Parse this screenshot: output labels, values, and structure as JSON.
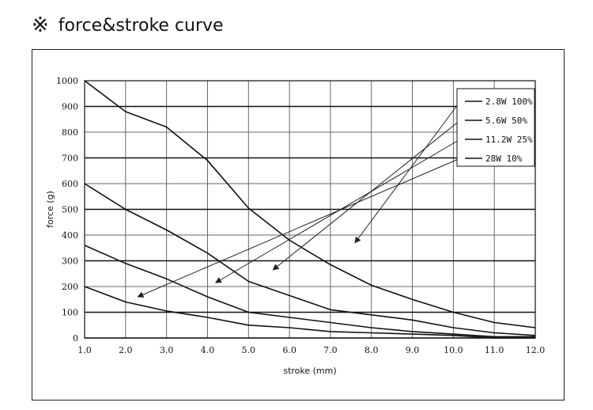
{
  "header": {
    "mark": "※",
    "title": "force&stroke curve"
  },
  "chart_data": {
    "type": "line",
    "title": "force&stroke curve",
    "xlabel": "stroke (mm)",
    "ylabel": "force (g)",
    "xlim": [
      1.0,
      12.0
    ],
    "ylim": [
      0,
      1000
    ],
    "xticks": [
      "1.0",
      "2.0",
      "3.0",
      "4.0",
      "5.0",
      "6.0",
      "7.0",
      "8.0",
      "9.0",
      "10.0",
      "11.0",
      "12.0"
    ],
    "yticks": [
      "0",
      "100",
      "200",
      "300",
      "400",
      "500",
      "600",
      "700",
      "800",
      "900",
      "1000"
    ],
    "grid": true,
    "legend_position": "top-right",
    "series": [
      {
        "name": "2.8W 100%",
        "x": [
          1.0,
          2.0,
          3.0,
          4.0,
          5.0,
          6.0,
          7.0,
          8.0,
          9.0,
          10.0,
          11.0,
          12.0
        ],
        "y": [
          1000,
          880,
          820,
          690,
          505,
          380,
          285,
          205,
          150,
          100,
          60,
          40
        ]
      },
      {
        "name": "5.6W 50%",
        "x": [
          1.0,
          2.0,
          3.0,
          4.0,
          5.0,
          6.0,
          7.0,
          8.0,
          9.0,
          10.0,
          11.0,
          12.0
        ],
        "y": [
          600,
          500,
          420,
          330,
          220,
          165,
          110,
          90,
          70,
          40,
          20,
          10
        ]
      },
      {
        "name": "11.2W 25%",
        "x": [
          1.0,
          2.0,
          3.0,
          4.0,
          5.0,
          6.0,
          7.0,
          8.0,
          9.0,
          10.0,
          11.0,
          12.0
        ],
        "y": [
          360,
          290,
          230,
          160,
          100,
          80,
          60,
          40,
          25,
          15,
          5,
          5
        ]
      },
      {
        "name": "28W 10%",
        "x": [
          1.0,
          2.0,
          3.0,
          4.0,
          5.0,
          6.0,
          7.0,
          8.0,
          9.0,
          10.0,
          11.0,
          12.0
        ],
        "y": [
          200,
          140,
          105,
          80,
          50,
          40,
          25,
          20,
          15,
          10,
          0,
          0
        ]
      }
    ],
    "annotations": [
      {
        "series": "2.8W 100%",
        "arrow_to": [
          7.6,
          370
        ]
      },
      {
        "series": "5.6W 50%",
        "arrow_to": [
          5.6,
          265
        ]
      },
      {
        "series": "11.2W 25%",
        "arrow_to": [
          4.2,
          215
        ]
      },
      {
        "series": "28W 10%",
        "arrow_to": [
          2.3,
          160
        ]
      }
    ]
  }
}
